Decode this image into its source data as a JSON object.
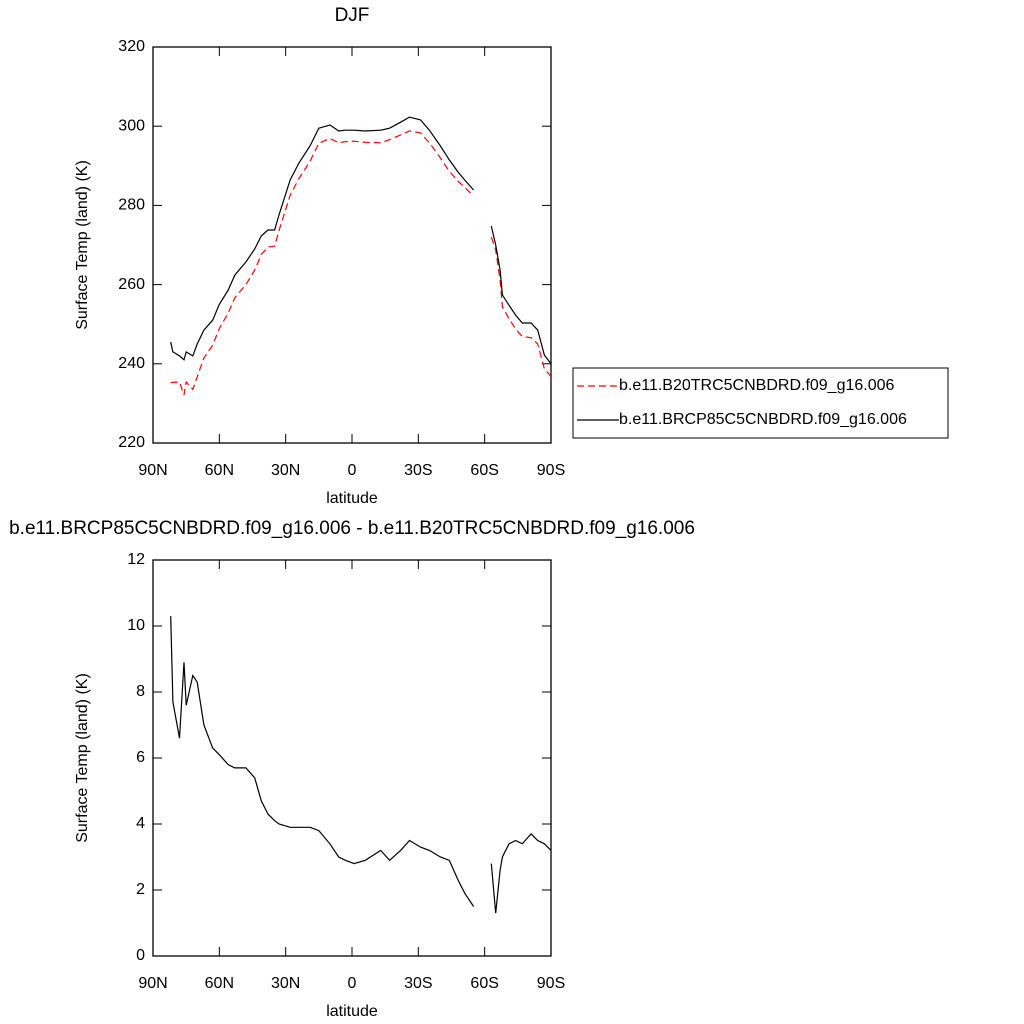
{
  "chart_data": [
    {
      "type": "line",
      "title": "DJF",
      "xlabel": "latitude",
      "ylabel": "Surface Temp (land) (K)",
      "x": [
        82,
        81,
        78,
        76,
        75,
        72,
        70,
        67,
        63,
        60,
        56,
        53,
        48,
        44,
        41,
        38,
        35,
        33,
        28,
        24,
        19,
        15,
        10,
        6,
        3,
        -1,
        -6,
        -13,
        -17,
        -22,
        -26,
        -31,
        -35,
        -40,
        -44,
        -48,
        -51,
        -55,
        -60,
        -63,
        -65,
        -67,
        -68,
        -71,
        -74,
        -77,
        -81,
        -84,
        -87,
        -90
      ],
      "series": [
        {
          "name": "b.e11.B20TRC5CNBDRD.f09_g16.006",
          "color": "#ff0000",
          "dashed": true,
          "values": [
            235.2,
            235.3,
            235.4,
            232.1,
            235.4,
            233.5,
            236.7,
            241.5,
            244.7,
            248.9,
            252.8,
            256.7,
            260,
            263.6,
            267.6,
            269.5,
            269.7,
            273.6,
            282.5,
            286.8,
            291.1,
            295.7,
            296.9,
            295.8,
            296.1,
            296.2,
            295.9,
            295.8,
            296.6,
            297.8,
            298.8,
            298.3,
            295.8,
            292,
            288.6,
            286.1,
            284.5,
            282.4,
            null,
            272,
            268.7,
            261.1,
            254.4,
            251.4,
            248.8,
            246.9,
            246.6,
            245,
            238.7,
            236.8
          ]
        },
        {
          "name": "b.e11.BRCP85C5CNBDRD.f09_g16.006",
          "color": "#000000",
          "dashed": false,
          "values": [
            245.5,
            243,
            242,
            241,
            243,
            242,
            245,
            248.5,
            251,
            255,
            258.6,
            262.4,
            265.7,
            269,
            272.3,
            273.8,
            273.8,
            277.6,
            286.4,
            290.7,
            295,
            299.5,
            300.3,
            298.8,
            299,
            299,
            298.8,
            299,
            299.5,
            301,
            302.3,
            301.6,
            299,
            295,
            291.5,
            288.4,
            286.4,
            283.9,
            null,
            274.8,
            270,
            263.7,
            257.4,
            254.8,
            252.3,
            250.3,
            250.3,
            248.5,
            242.2,
            240
          ]
        }
      ],
      "xlim": [
        90,
        -90
      ],
      "xticks": [
        {
          "value": 90,
          "label": "90N"
        },
        {
          "value": 60,
          "label": "60N"
        },
        {
          "value": 30,
          "label": "30N"
        },
        0,
        {
          "value": -30,
          "label": "30S"
        },
        {
          "value": -60,
          "label": "60S"
        },
        {
          "value": -90,
          "label": "90S"
        }
      ],
      "ylim": [
        220,
        320
      ],
      "yticks": [
        220,
        240,
        260,
        280,
        300,
        320
      ],
      "legend": "right"
    },
    {
      "type": "line",
      "title": "b.e11.BRCP85C5CNBDRD.f09_g16.006 - b.e11.B20TRC5CNBDRD.f09_g16.006",
      "xlabel": "latitude",
      "ylabel": "Surface Temp (land) (K)",
      "x": [
        82,
        81,
        78,
        76,
        75,
        72,
        70,
        67,
        63,
        60,
        56,
        53,
        48,
        44,
        41,
        38,
        35,
        33,
        28,
        24,
        19,
        15,
        10,
        6,
        3,
        -1,
        -6,
        -13,
        -17,
        -22,
        -26,
        -31,
        -35,
        -40,
        -44,
        -48,
        -51,
        -55,
        -60,
        -63,
        -65,
        -67,
        -68,
        -71,
        -74,
        -77,
        -81,
        -84,
        -87,
        -90
      ],
      "values": [
        10.3,
        7.7,
        6.6,
        8.9,
        7.6,
        8.5,
        8.3,
        7.0,
        6.3,
        6.1,
        5.8,
        5.7,
        5.7,
        5.4,
        4.7,
        4.3,
        4.1,
        4.0,
        3.9,
        3.9,
        3.9,
        3.8,
        3.4,
        3.0,
        2.9,
        2.8,
        2.9,
        3.2,
        2.9,
        3.2,
        3.5,
        3.3,
        3.2,
        3.0,
        2.9,
        2.3,
        1.9,
        1.5,
        null,
        2.8,
        1.3,
        2.6,
        3.0,
        3.4,
        3.5,
        3.4,
        3.7,
        3.5,
        3.4,
        3.2
      ],
      "color": "#000000",
      "xlim": [
        90,
        -90
      ],
      "xticks": [
        {
          "value": 90,
          "label": "90N"
        },
        {
          "value": 60,
          "label": "60N"
        },
        {
          "value": 30,
          "label": "30N"
        },
        0,
        {
          "value": -30,
          "label": "30S"
        },
        {
          "value": -60,
          "label": "60S"
        },
        {
          "value": -90,
          "label": "90S"
        }
      ],
      "ylim": [
        0,
        12
      ],
      "yticks": [
        0,
        2,
        4,
        6,
        8,
        10,
        12
      ]
    }
  ]
}
